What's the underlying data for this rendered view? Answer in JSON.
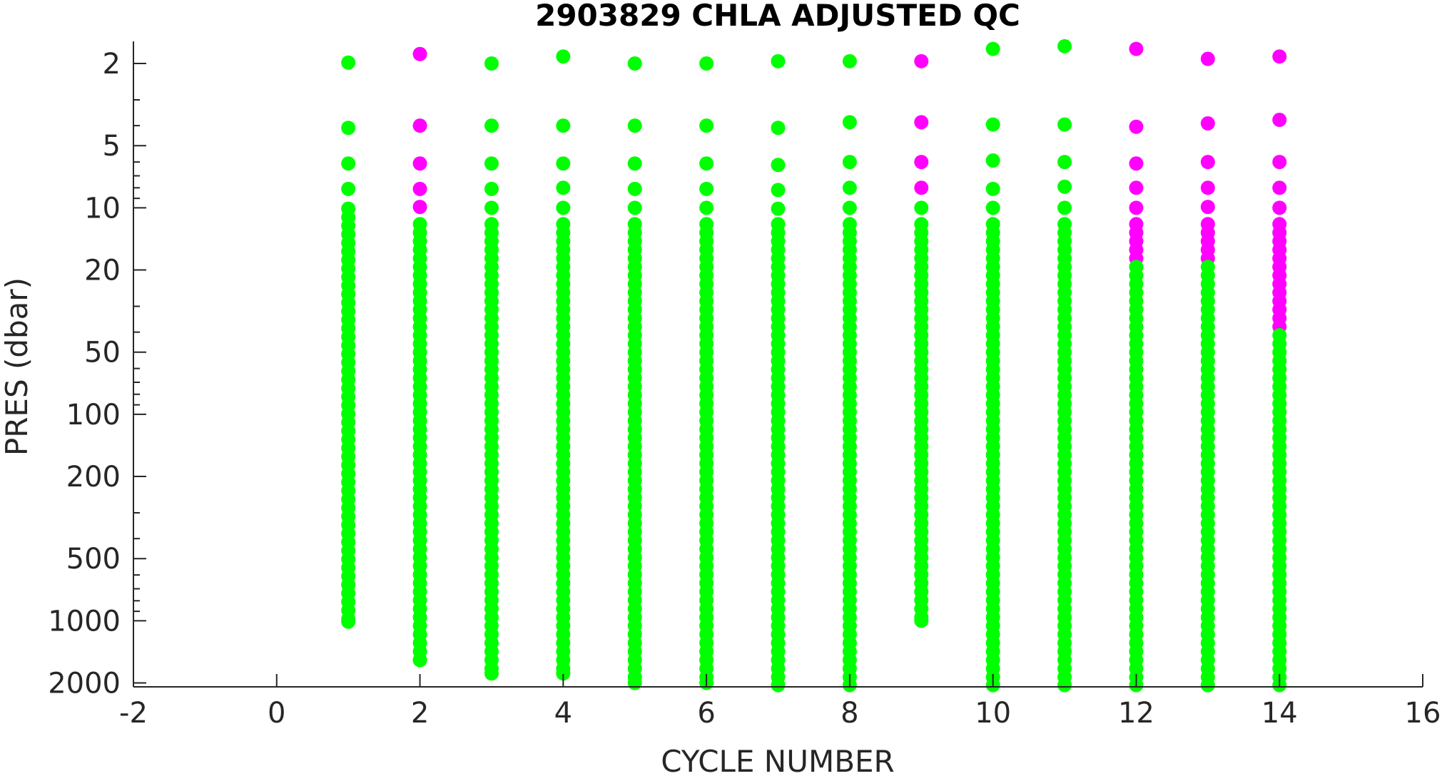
{
  "chart_data": {
    "type": "scatter",
    "title": "2903829  CHLA ADJUSTED QC",
    "xlabel": "CYCLE NUMBER",
    "ylabel": "PRES (dbar)",
    "xlim": [
      -2,
      16
    ],
    "ylim": [
      1.5,
      2100
    ],
    "y_scale": "log",
    "y_reversed": true,
    "grid": false,
    "x_ticks": [
      -2,
      0,
      2,
      4,
      6,
      8,
      10,
      12,
      14,
      16
    ],
    "y_ticks": [
      2,
      5,
      10,
      20,
      50,
      100,
      200,
      500,
      1000,
      2000
    ],
    "colors": {
      "good": "#00ff00",
      "bad": "#ff00ff",
      "axis": "#262626"
    },
    "profiles": [
      {
        "cycle": 1,
        "top": 1.98,
        "bottom": 1010,
        "shallow": [
          {
            "p": 1.98,
            "q": "good"
          },
          {
            "p": 4.1,
            "q": "good"
          },
          {
            "p": 6.1,
            "q": "good"
          },
          {
            "p": 8.1,
            "q": "good"
          },
          {
            "p": 10.1,
            "q": "good"
          }
        ]
      },
      {
        "cycle": 2,
        "top": 1.8,
        "bottom": 1550,
        "shallow": [
          {
            "p": 1.8,
            "q": "bad"
          },
          {
            "p": 4.0,
            "q": "bad"
          },
          {
            "p": 6.1,
            "q": "bad"
          },
          {
            "p": 8.1,
            "q": "bad"
          },
          {
            "p": 9.9,
            "q": "bad"
          },
          {
            "p": 12.0,
            "q": "good"
          }
        ]
      },
      {
        "cycle": 3,
        "top": 2.0,
        "bottom": 1800,
        "shallow": [
          {
            "p": 2.0,
            "q": "good"
          },
          {
            "p": 4.0,
            "q": "good"
          },
          {
            "p": 6.1,
            "q": "good"
          },
          {
            "p": 8.1,
            "q": "good"
          },
          {
            "p": 10.0,
            "q": "good"
          },
          {
            "p": 12.0,
            "q": "good"
          }
        ]
      },
      {
        "cycle": 4,
        "top": 1.85,
        "bottom": 1800,
        "shallow": [
          {
            "p": 1.85,
            "q": "good"
          },
          {
            "p": 4.0,
            "q": "good"
          },
          {
            "p": 6.1,
            "q": "good"
          },
          {
            "p": 8.0,
            "q": "good"
          },
          {
            "p": 10.0,
            "q": "good"
          },
          {
            "p": 12.0,
            "q": "good"
          }
        ]
      },
      {
        "cycle": 5,
        "top": 2.0,
        "bottom": 2000,
        "shallow": [
          {
            "p": 2.0,
            "q": "good"
          },
          {
            "p": 4.0,
            "q": "good"
          },
          {
            "p": 6.1,
            "q": "good"
          },
          {
            "p": 8.1,
            "q": "good"
          },
          {
            "p": 10.0,
            "q": "good"
          },
          {
            "p": 12.0,
            "q": "good"
          }
        ]
      },
      {
        "cycle": 6,
        "top": 2.0,
        "bottom": 2000,
        "shallow": [
          {
            "p": 2.0,
            "q": "good"
          },
          {
            "p": 4.0,
            "q": "good"
          },
          {
            "p": 6.1,
            "q": "good"
          },
          {
            "p": 8.1,
            "q": "good"
          },
          {
            "p": 10.0,
            "q": "good"
          },
          {
            "p": 12.0,
            "q": "good"
          }
        ]
      },
      {
        "cycle": 7,
        "top": 1.95,
        "bottom": 2050,
        "shallow": [
          {
            "p": 1.95,
            "q": "good"
          },
          {
            "p": 4.1,
            "q": "good"
          },
          {
            "p": 6.2,
            "q": "good"
          },
          {
            "p": 8.2,
            "q": "good"
          },
          {
            "p": 10.1,
            "q": "good"
          },
          {
            "p": 12.0,
            "q": "good"
          }
        ]
      },
      {
        "cycle": 8,
        "top": 1.95,
        "bottom": 2050,
        "shallow": [
          {
            "p": 1.95,
            "q": "good"
          },
          {
            "p": 3.85,
            "q": "good"
          },
          {
            "p": 6.0,
            "q": "good"
          },
          {
            "p": 8.0,
            "q": "good"
          },
          {
            "p": 10.0,
            "q": "good"
          },
          {
            "p": 12.0,
            "q": "good"
          }
        ]
      },
      {
        "cycle": 9,
        "top": 1.95,
        "bottom": 1000,
        "shallow": [
          {
            "p": 1.95,
            "q": "bad"
          },
          {
            "p": 3.85,
            "q": "bad"
          },
          {
            "p": 6.0,
            "q": "bad"
          },
          {
            "p": 8.0,
            "q": "bad"
          },
          {
            "p": 10.0,
            "q": "good"
          },
          {
            "p": 12.0,
            "q": "good"
          }
        ]
      },
      {
        "cycle": 10,
        "top": 1.7,
        "bottom": 2050,
        "shallow": [
          {
            "p": 1.7,
            "q": "good"
          },
          {
            "p": 3.95,
            "q": "good"
          },
          {
            "p": 5.9,
            "q": "good"
          },
          {
            "p": 8.1,
            "q": "good"
          },
          {
            "p": 10.0,
            "q": "good"
          },
          {
            "p": 12.0,
            "q": "good"
          }
        ]
      },
      {
        "cycle": 11,
        "top": 1.65,
        "bottom": 2050,
        "shallow": [
          {
            "p": 1.65,
            "q": "good"
          },
          {
            "p": 3.95,
            "q": "good"
          },
          {
            "p": 6.0,
            "q": "good"
          },
          {
            "p": 7.9,
            "q": "good"
          },
          {
            "p": 10.0,
            "q": "good"
          },
          {
            "p": 12.0,
            "q": "good"
          }
        ]
      },
      {
        "cycle": 12,
        "top": 1.7,
        "bottom": 2050,
        "bad_until": 18.5,
        "shallow": [
          {
            "p": 1.7,
            "q": "bad"
          },
          {
            "p": 4.05,
            "q": "bad"
          },
          {
            "p": 6.1,
            "q": "bad"
          },
          {
            "p": 8.0,
            "q": "bad"
          },
          {
            "p": 10.0,
            "q": "bad"
          },
          {
            "p": 12.0,
            "q": "bad"
          }
        ]
      },
      {
        "cycle": 13,
        "top": 1.9,
        "bottom": 2050,
        "bad_until": 18.5,
        "shallow": [
          {
            "p": 1.9,
            "q": "bad"
          },
          {
            "p": 3.9,
            "q": "bad"
          },
          {
            "p": 6.0,
            "q": "bad"
          },
          {
            "p": 8.0,
            "q": "bad"
          },
          {
            "p": 9.9,
            "q": "bad"
          },
          {
            "p": 12.0,
            "q": "bad"
          }
        ]
      },
      {
        "cycle": 14,
        "top": 1.85,
        "bottom": 2050,
        "bad_until": 38,
        "shallow": [
          {
            "p": 1.85,
            "q": "bad"
          },
          {
            "p": 3.75,
            "q": "bad"
          },
          {
            "p": 6.0,
            "q": "bad"
          },
          {
            "p": 8.0,
            "q": "bad"
          },
          {
            "p": 10.0,
            "q": "bad"
          },
          {
            "p": 12.0,
            "q": "bad"
          }
        ]
      }
    ]
  }
}
